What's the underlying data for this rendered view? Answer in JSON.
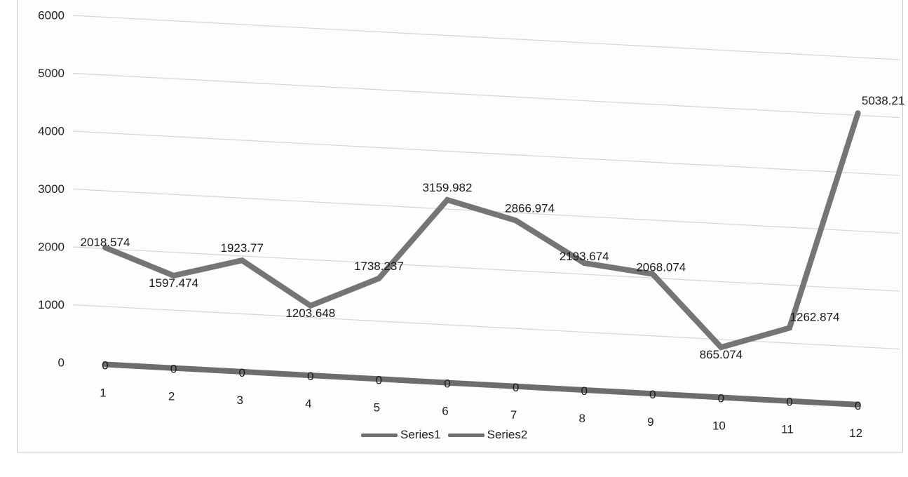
{
  "title": "",
  "caption": "",
  "chart_data": {
    "type": "line",
    "title": "",
    "xlabel": "",
    "ylabel": "",
    "categories": [
      "1",
      "2",
      "3",
      "4",
      "5",
      "6",
      "7",
      "8",
      "9",
      "10",
      "11",
      "12"
    ],
    "ylim": [
      0,
      6000
    ],
    "yticks": [
      "0",
      "1000",
      "2000",
      "3000",
      "4000",
      "5000",
      "6000"
    ],
    "grid": true,
    "legend_position": "bottom",
    "series": [
      {
        "name": "Series1",
        "values": [
          0,
          0,
          0,
          0,
          0,
          0,
          0,
          0,
          0,
          0,
          0,
          0
        ],
        "labels": [
          "0",
          "0",
          "0",
          "0",
          "0",
          "0",
          "0",
          "0",
          "0",
          "0",
          "0",
          "0"
        ],
        "color": "#6d6d6d"
      },
      {
        "name": "Series2",
        "values": [
          2018.574,
          1597.474,
          1923.77,
          1203.648,
          1738.237,
          3159.982,
          2866.974,
          2193.674,
          2068.074,
          865.074,
          1262.874,
          5038.21
        ],
        "labels": [
          "2018.574",
          "1597.474",
          "1923.77",
          "1203.648",
          "1738.237",
          "3159.982",
          "2866.974",
          "2193.674",
          "2068.074",
          "865.074",
          "1262.874",
          "5038.21"
        ],
        "color": "#757575"
      }
    ]
  }
}
